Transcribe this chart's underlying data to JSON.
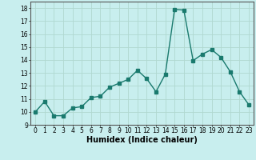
{
  "x": [
    0,
    1,
    2,
    3,
    4,
    5,
    6,
    7,
    8,
    9,
    10,
    11,
    12,
    13,
    14,
    15,
    16,
    17,
    18,
    19,
    20,
    21,
    22,
    23
  ],
  "y": [
    10.0,
    10.8,
    9.7,
    9.7,
    10.3,
    10.4,
    11.1,
    11.2,
    11.9,
    12.2,
    12.5,
    13.2,
    12.55,
    11.55,
    12.9,
    17.9,
    17.85,
    13.95,
    14.45,
    14.8,
    14.2,
    13.1,
    11.55,
    10.55
  ],
  "line_color": "#1a7a6e",
  "marker": "s",
  "markersize": 2.2,
  "linewidth": 1.0,
  "bg_color": "#c8eeee",
  "grid_major_color": "#b0d8d0",
  "xlabel": "Humidex (Indice chaleur)",
  "xlabel_fontsize": 7,
  "xlabel_fontweight": "bold",
  "ylim": [
    9,
    18.5
  ],
  "xlim": [
    -0.5,
    23.5
  ],
  "yticks": [
    9,
    10,
    11,
    12,
    13,
    14,
    15,
    16,
    17,
    18
  ],
  "xtick_labels": [
    "0",
    "1",
    "2",
    "3",
    "4",
    "5",
    "6",
    "7",
    "8",
    "9",
    "10",
    "11",
    "12",
    "13",
    "14",
    "15",
    "16",
    "17",
    "18",
    "19",
    "20",
    "21",
    "22",
    "23"
  ],
  "tick_fontsize": 5.5
}
